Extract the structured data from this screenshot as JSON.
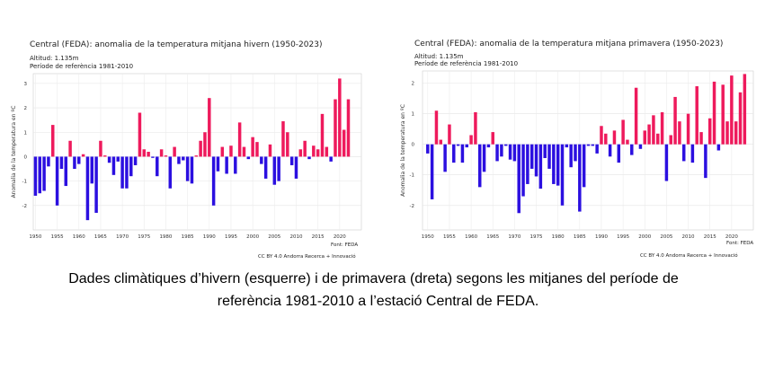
{
  "chart_data": [
    {
      "type": "bar",
      "title": "Central (FEDA): anomalia de la temperatura mitjana hivern (1950-2023)",
      "subtitle": [
        "Altitud: 1.135m",
        "Període de referència 1981-2010"
      ],
      "xlabel": "",
      "ylabel": "Anomalia de la temperatura en ºC",
      "ylim": [
        -3,
        3.4
      ],
      "yticks": [
        -2,
        -1,
        0,
        1,
        2,
        3
      ],
      "xlim": [
        1949.5,
        2025
      ],
      "xticks": [
        1950,
        1955,
        1960,
        1965,
        1970,
        1975,
        1980,
        1985,
        1990,
        1995,
        2000,
        2005,
        2010,
        2015,
        2020
      ],
      "xtick_labels": [
        "1950",
        "1955",
        "1960",
        "1965",
        "1970",
        "1975",
        "1980",
        "1985",
        "1990",
        "1995",
        "2000",
        "2005",
        "2010",
        "2015",
        "2020"
      ],
      "source": "Font: FEDA",
      "license": "CC BY 4.0 Andorra Recerca + Innovació",
      "grid": true,
      "colors": {
        "positive": "#ee1a5c",
        "negative": "#2b0fe0"
      },
      "x": [
        1950,
        1951,
        1952,
        1953,
        1954,
        1955,
        1956,
        1957,
        1958,
        1959,
        1960,
        1961,
        1962,
        1963,
        1964,
        1965,
        1966,
        1967,
        1968,
        1969,
        1970,
        1971,
        1972,
        1973,
        1974,
        1975,
        1976,
        1977,
        1978,
        1979,
        1980,
        1981,
        1982,
        1983,
        1984,
        1985,
        1986,
        1987,
        1988,
        1989,
        1990,
        1991,
        1992,
        1993,
        1994,
        1995,
        1996,
        1997,
        1998,
        1999,
        2000,
        2001,
        2002,
        2003,
        2004,
        2005,
        2006,
        2007,
        2008,
        2009,
        2010,
        2011,
        2012,
        2013,
        2014,
        2015,
        2016,
        2017,
        2018,
        2019,
        2020,
        2021,
        2022,
        2023
      ],
      "values": [
        -1.6,
        -1.5,
        -1.4,
        -0.4,
        1.3,
        -2.0,
        -0.5,
        -1.2,
        0.65,
        -0.5,
        -0.3,
        0.1,
        -2.6,
        -1.1,
        -2.3,
        0.65,
        0.05,
        -0.25,
        -0.75,
        -0.2,
        -1.3,
        -1.3,
        -0.8,
        -0.35,
        1.8,
        0.3,
        0.2,
        -0.05,
        -0.8,
        0.3,
        0.05,
        -1.3,
        0.4,
        -0.3,
        -0.15,
        -1.0,
        -1.1,
        0.05,
        0.65,
        1.0,
        2.4,
        -2.0,
        -0.6,
        0.4,
        -0.7,
        0.45,
        -0.7,
        1.4,
        0.4,
        -0.1,
        0.8,
        0.6,
        -0.3,
        -0.9,
        0.5,
        -1.15,
        -1.0,
        1.45,
        1.0,
        -0.35,
        -0.9,
        0.3,
        0.65,
        -0.1,
        0.45,
        0.3,
        1.75,
        0.4,
        -0.2,
        2.35,
        3.2,
        1.1,
        2.35,
        null
      ]
    },
    {
      "type": "bar",
      "title": "Central (FEDA): anomalia de la temperatura mitjana primavera (1950-2023)",
      "subtitle": [
        "Altitud: 1.135m",
        "Període de referència 1981-2010"
      ],
      "xlabel": "",
      "ylabel": "Anomalia de la temperatura en ºC",
      "ylim": [
        -2.8,
        2.4
      ],
      "yticks": [
        -2,
        -1,
        0,
        1,
        2
      ],
      "xlim": [
        1948.8,
        2025
      ],
      "xticks": [
        1950,
        1955,
        1960,
        1965,
        1970,
        1975,
        1980,
        1985,
        1990,
        1995,
        2000,
        2005,
        2010,
        2015,
        2020
      ],
      "xtick_labels": [
        "1950",
        "1955",
        "1960",
        "1965",
        "1970",
        "1975",
        "1980",
        "1985",
        "1990",
        "1995",
        "2000",
        "2005",
        "2010",
        "2015",
        "2020"
      ],
      "source": "Font: FEDA",
      "license": "CC BY 4.0 Andorra Recerca + Innovació",
      "grid": true,
      "colors": {
        "positive": "#ee1a5c",
        "negative": "#2b0fe0"
      },
      "x": [
        1950,
        1951,
        1952,
        1953,
        1954,
        1955,
        1956,
        1957,
        1958,
        1959,
        1960,
        1961,
        1962,
        1963,
        1964,
        1965,
        1966,
        1967,
        1968,
        1969,
        1970,
        1971,
        1972,
        1973,
        1974,
        1975,
        1976,
        1977,
        1978,
        1979,
        1980,
        1981,
        1982,
        1983,
        1984,
        1985,
        1986,
        1987,
        1988,
        1989,
        1990,
        1991,
        1992,
        1993,
        1994,
        1995,
        1996,
        1997,
        1998,
        1999,
        2000,
        2001,
        2002,
        2003,
        2004,
        2005,
        2006,
        2007,
        2008,
        2009,
        2010,
        2011,
        2012,
        2013,
        2014,
        2015,
        2016,
        2017,
        2018,
        2019,
        2020,
        2021,
        2022,
        2023
      ],
      "values": [
        -0.3,
        -1.8,
        1.1,
        0.15,
        -0.9,
        0.65,
        -0.6,
        -0.05,
        -0.6,
        -0.1,
        0.3,
        1.05,
        -1.4,
        -0.9,
        -0.1,
        0.4,
        -0.55,
        -0.4,
        -0.05,
        -0.5,
        -0.55,
        -2.25,
        -1.7,
        -1.3,
        -0.8,
        -1.05,
        -1.45,
        -0.45,
        -0.8,
        -1.3,
        -1.35,
        -2.0,
        -0.1,
        -0.75,
        -0.55,
        -2.2,
        -1.4,
        -0.05,
        -0.05,
        -0.3,
        0.6,
        0.35,
        -0.4,
        0.45,
        -0.6,
        0.8,
        0.15,
        -0.35,
        1.85,
        -0.15,
        0.45,
        0.65,
        0.95,
        0.35,
        1.05,
        -1.2,
        0.3,
        1.55,
        0.75,
        -0.55,
        1.0,
        -0.6,
        1.9,
        0.4,
        -1.1,
        0.85,
        2.05,
        -0.2,
        1.95,
        0.75,
        2.25,
        0.75,
        1.7,
        2.3
      ]
    }
  ],
  "caption": {
    "line1": "Dades climàtiques d’hivern (esquerre) i de primavera (dreta) segons les mitjanes del període de",
    "line2": "referència 1981-2010 a l’estació Central de FEDA."
  }
}
